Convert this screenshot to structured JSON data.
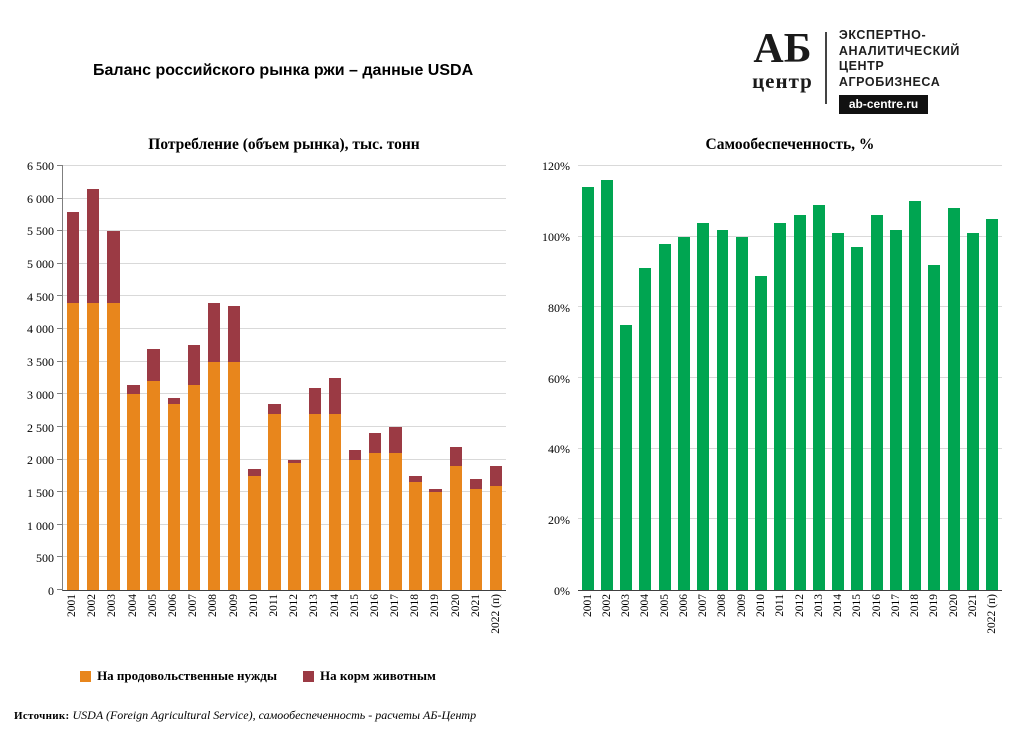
{
  "page": {
    "title": "Баланс российского рынка ржи – данные USDA",
    "source_label": "Источник:",
    "source_text": "USDA (Foreign Agricultural Service), самообеспеченность - расчеты АБ-Центр"
  },
  "logo": {
    "top": "АБ",
    "bottom": "центр",
    "lines": [
      "ЭКСПЕРТНО-",
      "АНАЛИТИЧЕСКИЙ",
      "ЦЕНТР",
      "АГРОБИЗНЕСА"
    ],
    "site": "ab-centre.ru"
  },
  "colors": {
    "food_orange": "#E8861C",
    "feed_darkred": "#9B3A44",
    "green": "#00A551",
    "gridline": "#D9D9D9"
  },
  "chart_data": [
    {
      "type": "bar",
      "stacked": true,
      "title": "Потребление (объем рынка), тыс. тонн",
      "categories": [
        "2001",
        "2002",
        "2003",
        "2004",
        "2005",
        "2006",
        "2007",
        "2008",
        "2009",
        "2010",
        "2011",
        "2012",
        "2013",
        "2014",
        "2015",
        "2016",
        "2017",
        "2018",
        "2019",
        "2020",
        "2021",
        "2022 (п)"
      ],
      "series": [
        {
          "name": "На продовольственные нужды",
          "color": "#E8861C",
          "values": [
            4400,
            4400,
            4400,
            3000,
            3200,
            2850,
            3150,
            3500,
            3500,
            1750,
            2700,
            1950,
            2700,
            2700,
            2000,
            2100,
            2100,
            1650,
            1500,
            1900,
            1550,
            1600
          ]
        },
        {
          "name": "На корм животным",
          "color": "#9B3A44",
          "values": [
            1400,
            1750,
            1100,
            150,
            500,
            100,
            600,
            900,
            850,
            100,
            150,
            50,
            400,
            550,
            150,
            300,
            400,
            100,
            50,
            300,
            150,
            300
          ]
        }
      ],
      "ylim": [
        0,
        6500
      ],
      "ytick_step": 500,
      "percent": false,
      "axis_ticks": true,
      "grid": true,
      "legend_position": "bottom"
    },
    {
      "type": "bar",
      "stacked": false,
      "title": "Самообеспеченность, %",
      "categories": [
        "2001",
        "2002",
        "2003",
        "2004",
        "2005",
        "2006",
        "2007",
        "2008",
        "2009",
        "2010",
        "2011",
        "2012",
        "2013",
        "2014",
        "2015",
        "2016",
        "2017",
        "2018",
        "2019",
        "2020",
        "2021",
        "2022 (п)"
      ],
      "series": [
        {
          "name": "Самообеспеченность",
          "color": "#00A551",
          "values": [
            114,
            116,
            75,
            91,
            98,
            100,
            104,
            102,
            100,
            89,
            104,
            106,
            109,
            101,
            97,
            106,
            102,
            110,
            92,
            108,
            101,
            105
          ]
        }
      ],
      "ylim": [
        0,
        120
      ],
      "ytick_step": 20,
      "percent": true,
      "axis_ticks": false,
      "grid": true,
      "legend_position": "none"
    }
  ]
}
